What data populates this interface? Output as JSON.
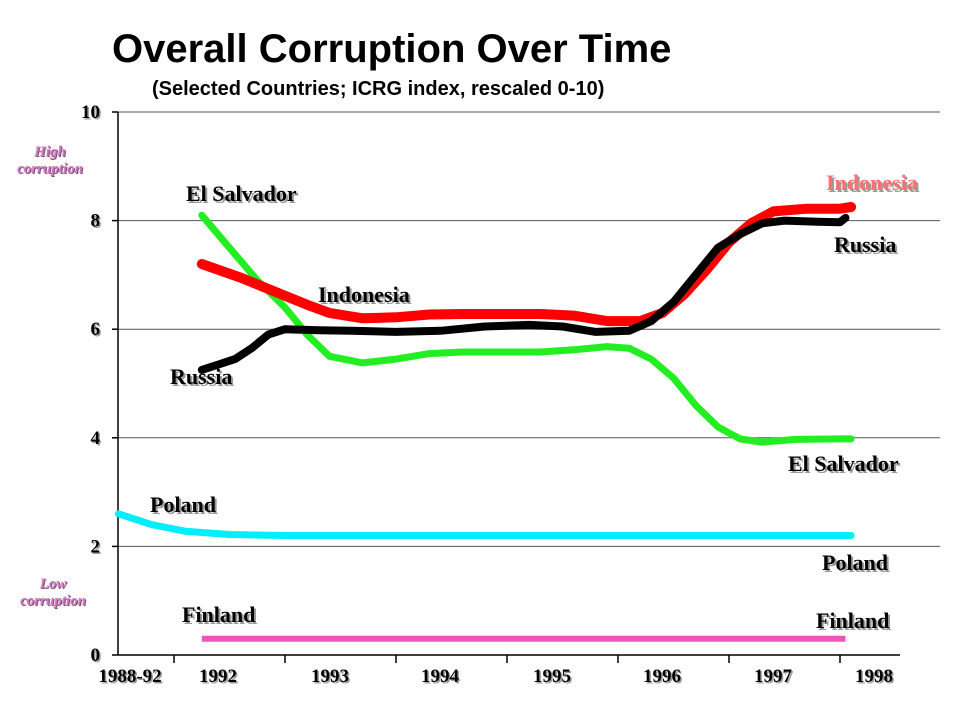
{
  "chart_data": {
    "type": "line",
    "title": "Overall Corruption Over Time",
    "subtitle": "(Selected Countries; ICRG index, rescaled 0-10)",
    "ylim": [
      0,
      10
    ],
    "yticks": [
      "0",
      "2",
      "4",
      "6",
      "8",
      "10"
    ],
    "xticks": [
      "1988-92",
      "1992",
      "1993",
      "1994",
      "1995",
      "1996",
      "1997",
      "1998"
    ],
    "high_label": "High corruption",
    "low_label": "Low corruption",
    "grid": true,
    "series": [
      {
        "name": "Indonesia",
        "color": "#ff0000",
        "labels": [
          "Indonesia",
          "Indonesia"
        ],
        "points": [
          [
            1992.25,
            7.2
          ],
          [
            1992.6,
            6.95
          ],
          [
            1992.9,
            6.7
          ],
          [
            1993.2,
            6.45
          ],
          [
            1993.4,
            6.3
          ],
          [
            1993.7,
            6.2
          ],
          [
            1994.0,
            6.22
          ],
          [
            1994.3,
            6.27
          ],
          [
            1994.6,
            6.28
          ],
          [
            1995.0,
            6.28
          ],
          [
            1995.3,
            6.28
          ],
          [
            1995.6,
            6.25
          ],
          [
            1995.9,
            6.15
          ],
          [
            1996.2,
            6.15
          ],
          [
            1996.4,
            6.3
          ],
          [
            1996.6,
            6.65
          ],
          [
            1996.8,
            7.1
          ],
          [
            1997.0,
            7.6
          ],
          [
            1997.2,
            7.95
          ],
          [
            1997.4,
            8.17
          ],
          [
            1997.7,
            8.22
          ],
          [
            1998.0,
            8.22
          ],
          [
            1998.1,
            8.25
          ]
        ]
      },
      {
        "name": "Russia",
        "color": "#000000",
        "labels": [
          "Russia",
          "Russia"
        ],
        "points": [
          [
            1992.25,
            5.25
          ],
          [
            1992.4,
            5.35
          ],
          [
            1992.55,
            5.45
          ],
          [
            1992.7,
            5.65
          ],
          [
            1992.85,
            5.9
          ],
          [
            1993.0,
            6.0
          ],
          [
            1993.3,
            5.98
          ],
          [
            1993.6,
            5.97
          ],
          [
            1994.0,
            5.95
          ],
          [
            1994.4,
            5.97
          ],
          [
            1994.8,
            6.05
          ],
          [
            1995.2,
            6.08
          ],
          [
            1995.5,
            6.05
          ],
          [
            1995.8,
            5.95
          ],
          [
            1996.1,
            5.97
          ],
          [
            1996.3,
            6.15
          ],
          [
            1996.5,
            6.5
          ],
          [
            1996.7,
            7.0
          ],
          [
            1996.9,
            7.5
          ],
          [
            1997.1,
            7.75
          ],
          [
            1997.3,
            7.95
          ],
          [
            1997.5,
            8.0
          ],
          [
            1997.8,
            7.98
          ],
          [
            1998.0,
            7.97
          ],
          [
            1998.05,
            8.05
          ]
        ]
      },
      {
        "name": "El Salvador",
        "color": "#22ee22",
        "labels": [
          "El Salvador",
          "El Salvador"
        ],
        "points": [
          [
            1992.25,
            8.1
          ],
          [
            1992.5,
            7.5
          ],
          [
            1992.75,
            6.9
          ],
          [
            1993.0,
            6.4
          ],
          [
            1993.2,
            5.9
          ],
          [
            1993.4,
            5.5
          ],
          [
            1993.7,
            5.38
          ],
          [
            1994.0,
            5.45
          ],
          [
            1994.3,
            5.55
          ],
          [
            1994.6,
            5.58
          ],
          [
            1995.0,
            5.58
          ],
          [
            1995.3,
            5.58
          ],
          [
            1995.6,
            5.62
          ],
          [
            1995.9,
            5.68
          ],
          [
            1996.1,
            5.65
          ],
          [
            1996.3,
            5.45
          ],
          [
            1996.5,
            5.1
          ],
          [
            1996.7,
            4.6
          ],
          [
            1996.9,
            4.2
          ],
          [
            1997.1,
            3.98
          ],
          [
            1997.3,
            3.92
          ],
          [
            1997.6,
            3.97
          ],
          [
            1998.0,
            3.98
          ],
          [
            1998.1,
            3.98
          ]
        ]
      },
      {
        "name": "Poland",
        "color": "#00eeff",
        "labels": [
          "Poland",
          "Poland"
        ],
        "points": [
          [
            1991.5,
            2.6
          ],
          [
            1991.8,
            2.4
          ],
          [
            1992.1,
            2.28
          ],
          [
            1992.5,
            2.22
          ],
          [
            1993.0,
            2.2
          ],
          [
            1994.0,
            2.2
          ],
          [
            1995.0,
            2.2
          ],
          [
            1996.0,
            2.2
          ],
          [
            1997.0,
            2.2
          ],
          [
            1998.0,
            2.2
          ],
          [
            1998.1,
            2.2
          ]
        ]
      },
      {
        "name": "Finland",
        "color": "#ee55bb",
        "labels": [
          "Finland",
          "Finland"
        ],
        "points": [
          [
            1992.25,
            0.3
          ],
          [
            1998.05,
            0.3
          ]
        ]
      }
    ]
  }
}
